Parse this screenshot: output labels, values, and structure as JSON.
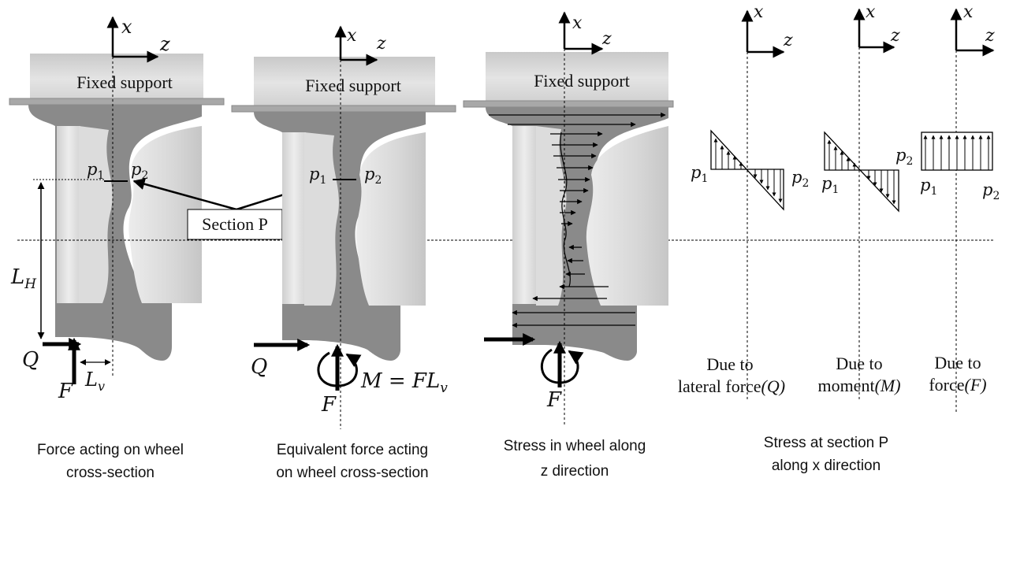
{
  "support_label": "Fixed support",
  "section_label": "Section P",
  "symbols": {
    "x": "x",
    "z": "z",
    "p1": "p",
    "p2": "p",
    "sub1": "1",
    "sub2": "2",
    "Q": "Q",
    "F": "F",
    "LH": "L",
    "LH_sub": "H",
    "Lv": "L",
    "Lv_sub": "v",
    "M_eq": "M = FL",
    "M_eq_sub": "v"
  },
  "captions": {
    "p1_l1": "Force acting on wheel",
    "p1_l2": "cross-section",
    "p2_l1": "Equivalent force acting",
    "p2_l2": "on wheel cross-section",
    "p3_l1": "Stress in wheel along",
    "p3_l2": "z direction",
    "p4_l1": "Stress at section P",
    "p4_l2": "along x direction"
  },
  "dist_labels": {
    "Q_l1": "Due to",
    "Q_l2": "lateral force",
    "Q_sym": "(Q)",
    "M_l1": "Due to",
    "M_l2": "moment",
    "M_sym": "(M)",
    "F_l1": "Due to",
    "F_l2": "force",
    "F_sym": "(F)"
  }
}
